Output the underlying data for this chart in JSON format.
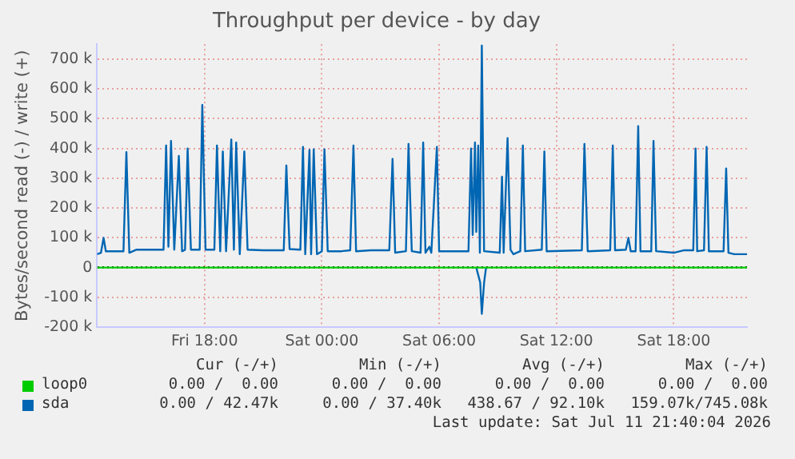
{
  "chart_data": {
    "type": "line",
    "title": "Throughput per device - by day",
    "ylabel": "Bytes/second read (-) / write (+)",
    "xlim": [
      "2026-07-10T12:30",
      "2026-07-11T21:45"
    ],
    "xticks": [
      {
        "value": "2026-07-10T18:00",
        "label": "Fri 18:00"
      },
      {
        "value": "2026-07-11T00:00",
        "label": "Sat 00:00"
      },
      {
        "value": "2026-07-11T06:00",
        "label": "Sat 06:00"
      },
      {
        "value": "2026-07-11T12:00",
        "label": "Sat 12:00"
      },
      {
        "value": "2026-07-11T18:00",
        "label": "Sat 18:00"
      }
    ],
    "ylim": [
      -200000,
      750000
    ],
    "yticks": [
      {
        "value": -200000,
        "label": "-200 k"
      },
      {
        "value": -100000,
        "label": "-100 k"
      },
      {
        "value": 0,
        "label": "0"
      },
      {
        "value": 100000,
        "label": "100 k"
      },
      {
        "value": 200000,
        "label": "200 k"
      },
      {
        "value": 300000,
        "label": "300 k"
      },
      {
        "value": 400000,
        "label": "400 k"
      },
      {
        "value": 500000,
        "label": "500 k"
      },
      {
        "value": 600000,
        "label": "600 k"
      },
      {
        "value": 700000,
        "label": "700 k"
      }
    ],
    "grid": true,
    "legend": "bottom",
    "marker": "none",
    "series": [
      {
        "name": "loop0",
        "color": "#00cc00",
        "x": [
          "2026-07-10T12:30",
          "2026-07-11T21:45"
        ],
        "values": [
          0,
          0
        ]
      },
      {
        "name": "sda",
        "color": "#0066b3",
        "x": [
          "2026-07-10T12:30",
          "2026-07-10T12:42",
          "2026-07-10T12:50",
          "2026-07-10T12:57",
          "2026-07-10T13:30",
          "2026-07-10T13:51",
          "2026-07-10T14:00",
          "2026-07-10T14:09",
          "2026-07-10T14:30",
          "2026-07-10T15:30",
          "2026-07-10T15:54",
          "2026-07-10T16:02",
          "2026-07-10T16:09",
          "2026-07-10T16:17",
          "2026-07-10T16:27",
          "2026-07-10T16:41",
          "2026-07-10T16:51",
          "2026-07-10T17:00",
          "2026-07-10T17:08",
          "2026-07-10T17:18",
          "2026-07-10T17:45",
          "2026-07-10T17:53",
          "2026-07-10T18:03",
          "2026-07-10T18:30",
          "2026-07-10T18:38",
          "2026-07-10T18:48",
          "2026-07-10T18:56",
          "2026-07-10T19:06",
          "2026-07-10T19:22",
          "2026-07-10T19:30",
          "2026-07-10T19:37",
          "2026-07-10T19:48",
          "2026-07-10T20:02",
          "2026-07-10T20:12",
          "2026-07-10T21:00",
          "2026-07-10T22:03",
          "2026-07-10T22:11",
          "2026-07-10T22:21",
          "2026-07-10T22:54",
          "2026-07-10T23:02",
          "2026-07-10T23:09",
          "2026-07-10T23:22",
          "2026-07-10T23:27",
          "2026-07-10T23:35",
          "2026-07-10T23:45",
          "2026-07-11T00:00",
          "2026-07-11T00:08",
          "2026-07-11T00:18",
          "2026-07-11T01:00",
          "2026-07-11T01:27",
          "2026-07-11T01:37",
          "2026-07-11T01:45",
          "2026-07-11T02:30",
          "2026-07-11T03:27",
          "2026-07-11T03:37",
          "2026-07-11T03:45",
          "2026-07-11T04:18",
          "2026-07-11T04:26",
          "2026-07-11T04:36",
          "2026-07-11T05:03",
          "2026-07-11T05:11",
          "2026-07-11T05:18",
          "2026-07-11T05:30",
          "2026-07-11T05:36",
          "2026-07-11T05:53",
          "2026-07-11T06:00",
          "2026-07-11T07:00",
          "2026-07-11T07:30",
          "2026-07-11T07:38",
          "2026-07-11T07:43",
          "2026-07-11T07:50",
          "2026-07-11T07:54",
          "2026-07-11T08:00",
          "2026-07-11T08:05",
          "2026-07-11T08:11",
          "2026-07-11T08:18",
          "2026-07-11T09:06",
          "2026-07-11T09:13",
          "2026-07-11T09:18",
          "2026-07-11T09:30",
          "2026-07-11T09:39",
          "2026-07-11T09:48",
          "2026-07-11T10:09",
          "2026-07-11T10:17",
          "2026-07-11T10:24",
          "2026-07-11T11:15",
          "2026-07-11T11:23",
          "2026-07-11T11:30",
          "2026-07-11T13:18",
          "2026-07-11T13:26",
          "2026-07-11T13:36",
          "2026-07-11T14:45",
          "2026-07-11T14:53",
          "2026-07-11T15:00",
          "2026-07-11T15:33",
          "2026-07-11T15:41",
          "2026-07-11T15:48",
          "2026-07-11T16:03",
          "2026-07-11T16:11",
          "2026-07-11T16:18",
          "2026-07-11T16:51",
          "2026-07-11T16:58",
          "2026-07-11T17:06",
          "2026-07-11T18:00",
          "2026-07-11T18:30",
          "2026-07-11T19:00",
          "2026-07-11T19:07",
          "2026-07-11T19:12",
          "2026-07-11T19:33",
          "2026-07-11T19:41",
          "2026-07-11T19:48",
          "2026-07-11T20:33",
          "2026-07-11T20:41",
          "2026-07-11T20:48",
          "2026-07-11T21:06",
          "2026-07-11T21:45"
        ],
        "values": [
          45000,
          50000,
          100000,
          55000,
          55000,
          55000,
          388000,
          50000,
          60000,
          60000,
          60000,
          410000,
          70000,
          425000,
          60000,
          375000,
          55000,
          60000,
          400000,
          60000,
          60000,
          546000,
          60000,
          60000,
          410000,
          55000,
          390000,
          55000,
          430000,
          60000,
          420000,
          45000,
          390000,
          60000,
          58000,
          58000,
          343000,
          62000,
          60000,
          405000,
          45000,
          395000,
          45000,
          397000,
          45000,
          55000,
          397000,
          55000,
          55000,
          58000,
          410000,
          55000,
          58000,
          58000,
          365000,
          50000,
          55000,
          415000,
          55000,
          50000,
          420000,
          50000,
          70000,
          50000,
          405000,
          55000,
          55000,
          55000,
          400000,
          110000,
          420000,
          120000,
          410000,
          50000,
          745000,
          55000,
          50000,
          305000,
          50000,
          435000,
          60000,
          45000,
          55000,
          410000,
          55000,
          60000,
          390000,
          55000,
          58000,
          415000,
          55000,
          58000,
          410000,
          58000,
          60000,
          100000,
          55000,
          55000,
          475000,
          55000,
          55000,
          425000,
          55000,
          50000,
          58000,
          58000,
          400000,
          55000,
          58000,
          405000,
          55000,
          55000,
          333000,
          50000,
          45000,
          45000
        ]
      },
      {
        "color": "#0066b3",
        "x": [
          "2026-07-11T07:54",
          "2026-07-11T08:06",
          "2026-07-11T08:11",
          "2026-07-11T08:18",
          "2026-07-11T08:24"
        ],
        "values": [
          0,
          -50000,
          -155000,
          -50000,
          0
        ]
      }
    ],
    "annotations": [
      "Cur (-/+)",
      "Min (-/+)",
      "Avg (-/+)",
      "Max (-/+)",
      "0.00 /  0.00",
      "0.00 /  0.00",
      "0.00 /  0.00",
      "0.00 /  0.00",
      "0.00 / 42.47k",
      "0.00 / 37.40k",
      "438.67 / 92.10k",
      "159.07k/745.08k",
      "Last update: Sat Jul 11 21:40:04 2026"
    ]
  }
}
